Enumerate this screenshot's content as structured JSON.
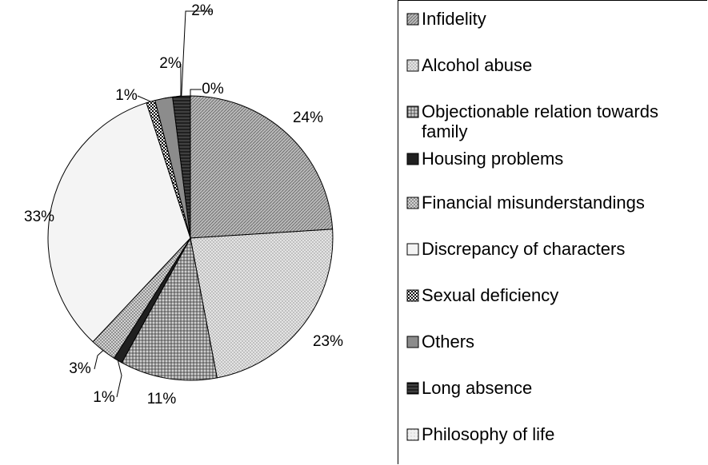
{
  "chart_data": {
    "type": "pie",
    "categories": [
      "Infidelity",
      "Alcohol abuse",
      "Objectionable relation towards family",
      "Housing problems",
      "Financial misunderstandings",
      "Discrepancy of characters",
      "Sexual deficiency",
      "Others",
      "Long absence",
      "Philosophy of life"
    ],
    "values": [
      24,
      23,
      11,
      1,
      3,
      33,
      1,
      2,
      2,
      0
    ],
    "value_labels": [
      "24%",
      "23%",
      "11%",
      "1%",
      "3%",
      "33%",
      "1%",
      "2%",
      "2%",
      "0%"
    ],
    "colors": [
      "#b8b8b8",
      "#e4e4e4",
      "#d0d0d0",
      "#202020",
      "#dcdcdc",
      "#f4f4f4",
      "#ffffff",
      "#8c8c8c",
      "#404040",
      "#f0f0f0"
    ],
    "legend": "right"
  }
}
